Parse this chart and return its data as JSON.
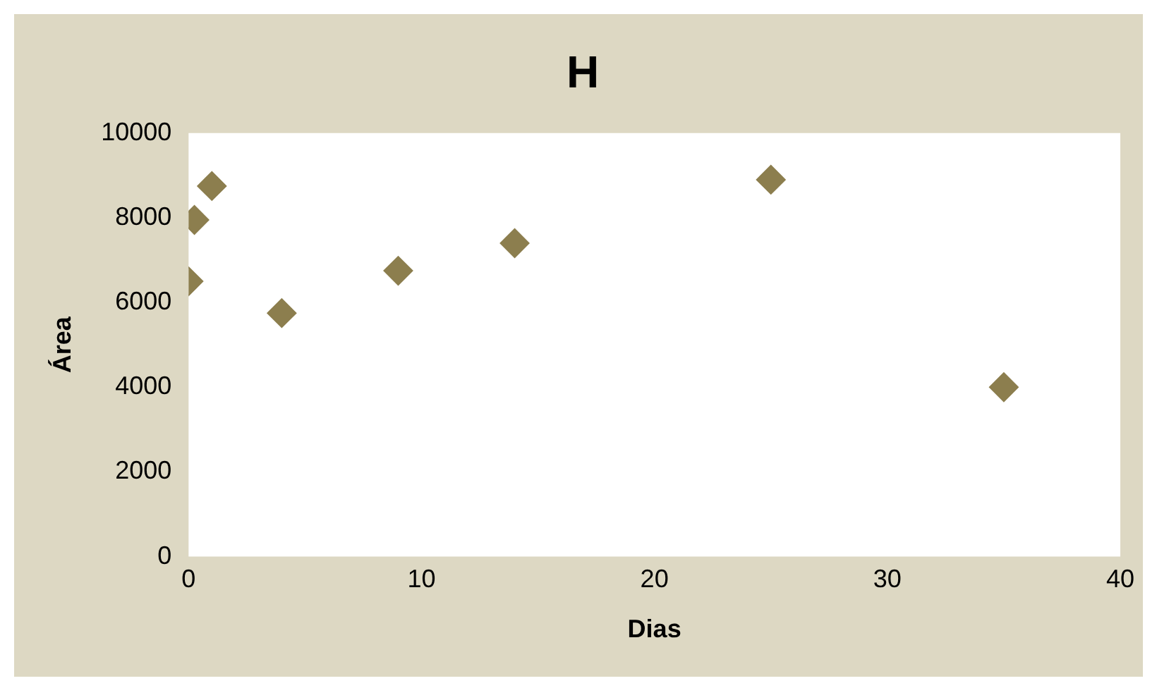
{
  "chart_data": {
    "type": "scatter",
    "title": "H",
    "xlabel": "Dias",
    "ylabel": "Área",
    "x": [
      0,
      0.25,
      1,
      4,
      9,
      14,
      25,
      35
    ],
    "values": [
      6500,
      7950,
      8750,
      5750,
      6750,
      7400,
      8900,
      4000
    ],
    "color": "#8c7e4e",
    "marker": "diamond",
    "xlim": [
      0,
      40
    ],
    "xticks": [
      0,
      10,
      20,
      30,
      40
    ],
    "ylim": [
      0,
      10000
    ],
    "yticks": [
      0,
      2000,
      4000,
      6000,
      8000,
      10000
    ],
    "grid": false,
    "legend": false
  }
}
